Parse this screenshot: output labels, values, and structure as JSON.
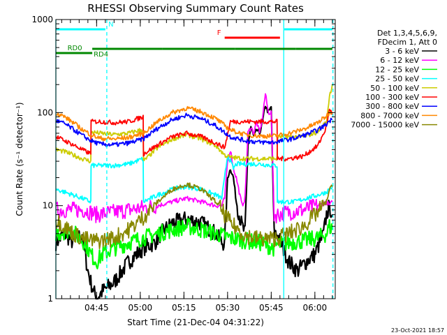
{
  "chart_data": {
    "type": "line",
    "title": "RHESSI Observing Summary Count Rates",
    "xlabel": "Start Time (21-Dec-04 04:31:22)",
    "ylabel": "Count Rate (s⁻¹ detector⁻¹)",
    "yscale": "log",
    "ylim": [
      1,
      1000
    ],
    "xlim_minutes": [
      0,
      96
    ],
    "x_ticks": [
      {
        "label": "04:45",
        "minute": 14
      },
      {
        "label": "05:00",
        "minute": 29
      },
      {
        "label": "05:15",
        "minute": 44
      },
      {
        "label": "05:30",
        "minute": 59
      },
      {
        "label": "05:45",
        "minute": 74
      },
      {
        "label": "06:00",
        "minute": 89
      }
    ],
    "y_ticks": [
      {
        "label": "1",
        "value": 1
      },
      {
        "label": "10",
        "value": 10
      },
      {
        "label": "100",
        "value": 100
      },
      {
        "label": "1000",
        "value": 1000
      }
    ],
    "legend": {
      "placement": "right",
      "header": [
        "Det 1,3,4,5,6,9,",
        "FDecim 1, Att 0"
      ]
    },
    "series": [
      {
        "name": "3 - 6 keV",
        "color": "#000000",
        "x": [
          0,
          3,
          6,
          9,
          10,
          11,
          12,
          13,
          14,
          15,
          16,
          20,
          25,
          30,
          34,
          36,
          40,
          45,
          50,
          55,
          57,
          58,
          59,
          60,
          61,
          62,
          63,
          64,
          65,
          66,
          67,
          68,
          69,
          70,
          71,
          72,
          73,
          74,
          75,
          76,
          79,
          80,
          83,
          86,
          89,
          92,
          93,
          94,
          95
        ],
        "y": [
          4,
          5,
          4,
          5,
          3,
          2,
          1.5,
          1.2,
          1,
          1.1,
          1.2,
          1.5,
          2.5,
          3.5,
          4,
          5,
          6.5,
          7.2,
          6.5,
          5,
          4,
          4,
          20,
          25,
          20,
          11,
          8,
          6,
          5,
          45,
          70,
          55,
          65,
          60,
          80,
          120,
          100,
          115,
          5,
          5,
          3,
          2.5,
          2,
          2.5,
          3,
          5,
          8,
          10,
          8
        ]
      },
      {
        "name": "6 - 12 keV",
        "color": "#ff00ff",
        "x": [
          0,
          5,
          10,
          14,
          20,
          25,
          30,
          35,
          40,
          45,
          50,
          55,
          57,
          58,
          59,
          60,
          61,
          62,
          63,
          64,
          65,
          66,
          67,
          68,
          69,
          70,
          71,
          72,
          73,
          74,
          75,
          76,
          80,
          85,
          90,
          93,
          94,
          95
        ],
        "y": [
          9,
          9,
          9,
          8,
          8.5,
          9,
          9.5,
          10,
          11,
          12,
          11,
          10,
          10,
          12,
          30,
          40,
          25,
          20,
          14,
          10,
          12,
          60,
          70,
          60,
          80,
          60,
          90,
          160,
          100,
          100,
          8,
          8,
          8.5,
          9,
          10,
          11,
          10,
          11
        ]
      },
      {
        "name": "12 - 25 keV",
        "color": "#00ff00",
        "x": [
          0,
          5,
          10,
          12,
          14,
          16,
          20,
          25,
          30,
          35,
          40,
          45,
          50,
          55,
          60,
          65,
          70,
          75,
          76,
          80,
          85,
          90,
          93,
          94,
          95
        ],
        "y": [
          5,
          5.5,
          4,
          3,
          2.5,
          3,
          3.5,
          4,
          4.5,
          5,
          5.5,
          6,
          5.5,
          5,
          4.5,
          4.2,
          4,
          3.5,
          3.8,
          4,
          4.2,
          4.5,
          5,
          6,
          5.5
        ]
      },
      {
        "name": "25 - 50 keV",
        "color": "#00ffff",
        "x": [
          0,
          3,
          6,
          9,
          12,
          12.1,
          15,
          20,
          25,
          30,
          30.1,
          35,
          40,
          45,
          50,
          55,
          57,
          58,
          59,
          60,
          61,
          62,
          65,
          70,
          75,
          76,
          76.1,
          78,
          82,
          86,
          90,
          93,
          94,
          95
        ],
        "y": [
          15,
          14,
          13,
          12,
          11,
          27,
          27,
          27,
          28,
          32,
          11,
          13,
          15,
          16,
          15,
          13,
          12,
          20,
          35,
          30,
          25,
          28,
          28,
          28,
          27,
          27,
          11,
          11,
          11,
          12,
          13,
          14,
          15,
          16
        ]
      },
      {
        "name": "50 - 100 keV",
        "color": "#cccc00",
        "x": [
          0,
          3,
          6,
          9,
          12,
          12.1,
          15,
          20,
          25,
          30,
          30.1,
          35,
          40,
          45,
          50,
          55,
          58,
          60,
          65,
          70,
          75,
          76,
          76.1,
          80,
          85,
          90,
          93,
          94,
          95
        ],
        "y": [
          40,
          38,
          35,
          32,
          30,
          62,
          60,
          58,
          60,
          66,
          30,
          42,
          52,
          58,
          52,
          44,
          35,
          33,
          32,
          32,
          32,
          32,
          55,
          55,
          55,
          62,
          80,
          150,
          200
        ]
      },
      {
        "name": "100 - 300 keV",
        "color": "#ff0000",
        "x": [
          0,
          3,
          6,
          9,
          12,
          12.1,
          15,
          20,
          25,
          30,
          30.1,
          35,
          40,
          45,
          50,
          55,
          58,
          60,
          65,
          70,
          75,
          76,
          76.1,
          80,
          85,
          90,
          93,
          94,
          95
        ],
        "y": [
          55,
          50,
          45,
          40,
          36,
          80,
          80,
          78,
          80,
          90,
          36,
          45,
          55,
          60,
          55,
          47,
          42,
          80,
          80,
          80,
          80,
          80,
          32,
          32,
          34,
          44,
          70,
          110,
          95
        ]
      },
      {
        "name": "300 - 800 keV",
        "color": "#0000ff",
        "x": [
          0,
          3,
          6,
          9,
          12,
          15,
          20,
          25,
          30,
          35,
          40,
          45,
          50,
          55,
          60,
          65,
          70,
          75,
          78,
          82,
          86,
          90,
          93,
          94,
          95
        ],
        "y": [
          82,
          76,
          66,
          57,
          50,
          46,
          45,
          47,
          52,
          68,
          84,
          94,
          86,
          72,
          55,
          50,
          48,
          48,
          50,
          53,
          58,
          65,
          75,
          82,
          84
        ]
      },
      {
        "name": "800 - 7000 keV",
        "color": "#ff8800",
        "x": [
          0,
          3,
          6,
          9,
          12,
          15,
          20,
          25,
          30,
          35,
          40,
          45,
          50,
          55,
          60,
          65,
          70,
          75,
          78,
          82,
          86,
          90,
          93,
          94,
          95
        ],
        "y": [
          100,
          90,
          78,
          66,
          58,
          53,
          52,
          54,
          60,
          80,
          100,
          112,
          102,
          86,
          65,
          58,
          56,
          56,
          58,
          62,
          68,
          78,
          92,
          100,
          102
        ]
      },
      {
        "name": "7000 - 15000 keV",
        "color": "#888800",
        "x": [
          0,
          3,
          6,
          9,
          12,
          15,
          20,
          25,
          30,
          35,
          40,
          45,
          50,
          55,
          60,
          65,
          70,
          75,
          80,
          85,
          90,
          93,
          94,
          95
        ],
        "y": [
          7,
          6,
          5,
          4.5,
          4.2,
          4.2,
          4.5,
          5.5,
          7.5,
          11,
          15,
          17,
          15,
          11,
          6.5,
          4.8,
          4.4,
          4.4,
          5,
          6,
          8.5,
          11,
          15,
          16
        ]
      }
    ],
    "annotations": [
      {
        "text": "N",
        "color": "#00ffff",
        "segments": [
          [
            0,
            17
          ],
          [
            78.5,
            95
          ]
        ],
        "y": 0.965
      },
      {
        "text": "F",
        "color": "#ff0000",
        "segments": [
          [
            58,
            77
          ]
        ],
        "y": 0.935
      },
      {
        "text": "RD0",
        "color": "#008800",
        "segments": [
          [
            0,
            12.5
          ]
        ],
        "y": 0.88
      },
      {
        "text": "RD4",
        "color": "#008800",
        "segments": [
          [
            12.5,
            36.5
          ],
          [
            36.5,
            61.5
          ],
          [
            61.5,
            82.5
          ],
          [
            82.5,
            95
          ]
        ],
        "y": 0.895
      }
    ],
    "vlines": [
      {
        "color": "#00ffff",
        "style": "solid",
        "minute": 0
      },
      {
        "color": "#00ffff",
        "style": "dashed",
        "minute": 17.5
      },
      {
        "color": "#00ffff",
        "style": "solid",
        "minute": 78.3
      },
      {
        "color": "#00ffff",
        "style": "dashed",
        "minute": 95.2
      }
    ]
  },
  "footer": {
    "timestamp": "23-Oct-2021 18:57"
  }
}
